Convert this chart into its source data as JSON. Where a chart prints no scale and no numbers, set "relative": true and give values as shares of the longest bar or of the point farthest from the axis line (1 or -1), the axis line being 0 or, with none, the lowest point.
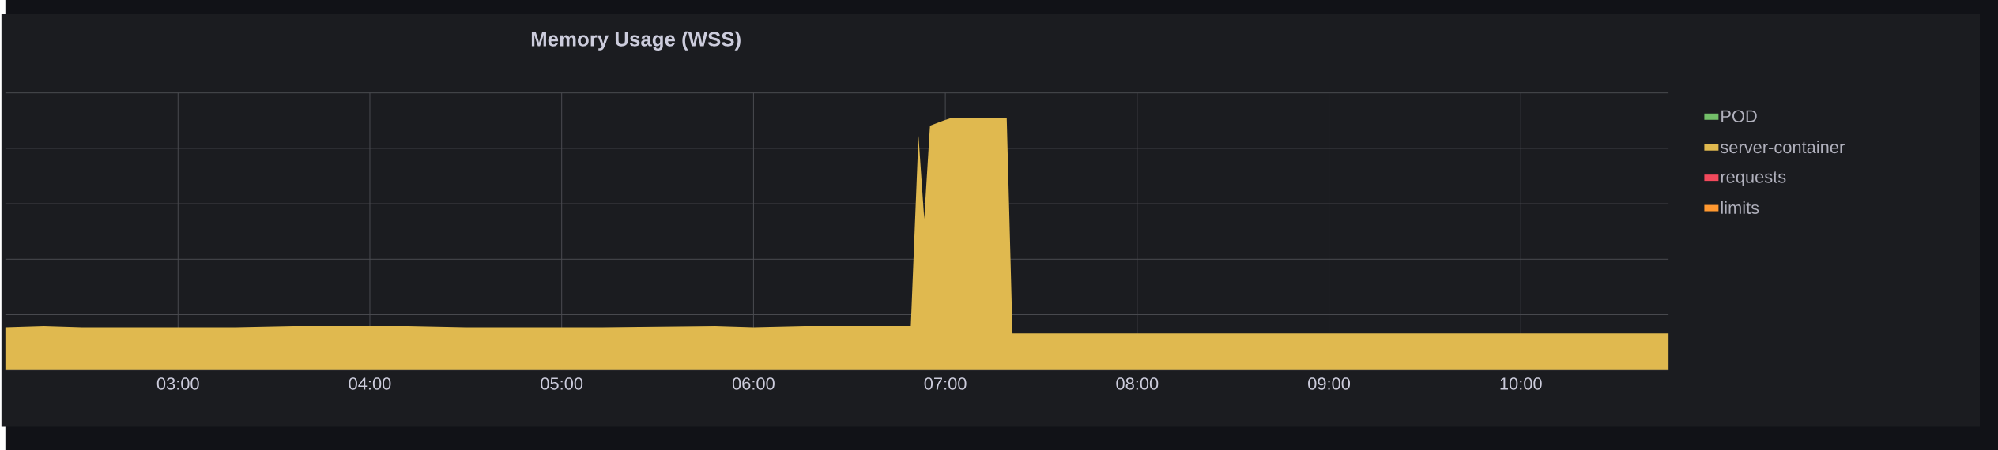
{
  "chart_data": {
    "type": "area",
    "title": "Memory Usage (WSS)",
    "relative": true,
    "grid": true,
    "legend": "right",
    "xlim": [
      2.1,
      10.77
    ],
    "xticks": [
      {
        "value": 3,
        "label": "03:00"
      },
      {
        "value": 4,
        "label": "04:00"
      },
      {
        "value": 5,
        "label": "05:00"
      },
      {
        "value": 6,
        "label": "06:00"
      },
      {
        "value": 7,
        "label": "07:00"
      },
      {
        "value": 8,
        "label": "08:00"
      },
      {
        "value": 9,
        "label": "09:00"
      },
      {
        "value": 10,
        "label": "10:00"
      }
    ],
    "x": [
      2.1,
      2.3,
      2.5,
      2.8,
      3.3,
      3.6,
      4.0,
      4.2,
      4.5,
      5.2,
      5.8,
      6.0,
      6.3,
      6.6,
      6.82,
      6.86,
      6.89,
      6.92,
      6.99,
      7.03,
      7.32,
      7.35,
      7.6,
      8.0,
      8.5,
      9.0,
      9.5,
      10.0,
      10.5,
      10.77
    ],
    "series": [
      {
        "name": "POD",
        "color": "#73bf69",
        "values": [
          null,
          null,
          null,
          null,
          null,
          null,
          null,
          null,
          null,
          null,
          null,
          null,
          null,
          null,
          null,
          null,
          null,
          null,
          null,
          null,
          null,
          null,
          null,
          null,
          null,
          null,
          null,
          null,
          null,
          null
        ]
      },
      {
        "name": "server-container",
        "color": "#e0b94f",
        "values": [
          0.17,
          0.175,
          0.17,
          0.17,
          0.17,
          0.175,
          0.175,
          0.175,
          0.17,
          0.17,
          0.175,
          0.17,
          0.175,
          0.175,
          0.175,
          0.93,
          0.6,
          0.97,
          0.99,
          1,
          1,
          0.146,
          0.146,
          0.146,
          0.146,
          0.146,
          0.146,
          0.146,
          0.146,
          0.146
        ]
      },
      {
        "name": "requests",
        "color": "#f2495c",
        "values": [
          null,
          null,
          null,
          null,
          null,
          null,
          null,
          null,
          null,
          null,
          null,
          null,
          null,
          null,
          null,
          null,
          null,
          null,
          null,
          null,
          null,
          null,
          null,
          null,
          null,
          null,
          null,
          null,
          null,
          null
        ]
      },
      {
        "name": "limits",
        "color": "#ff9830",
        "values": [
          null,
          null,
          null,
          null,
          null,
          null,
          null,
          null,
          null,
          null,
          null,
          null,
          null,
          null,
          null,
          null,
          null,
          null,
          null,
          null,
          null,
          null,
          null,
          null,
          null,
          null,
          null,
          null,
          null,
          null
        ]
      }
    ]
  }
}
